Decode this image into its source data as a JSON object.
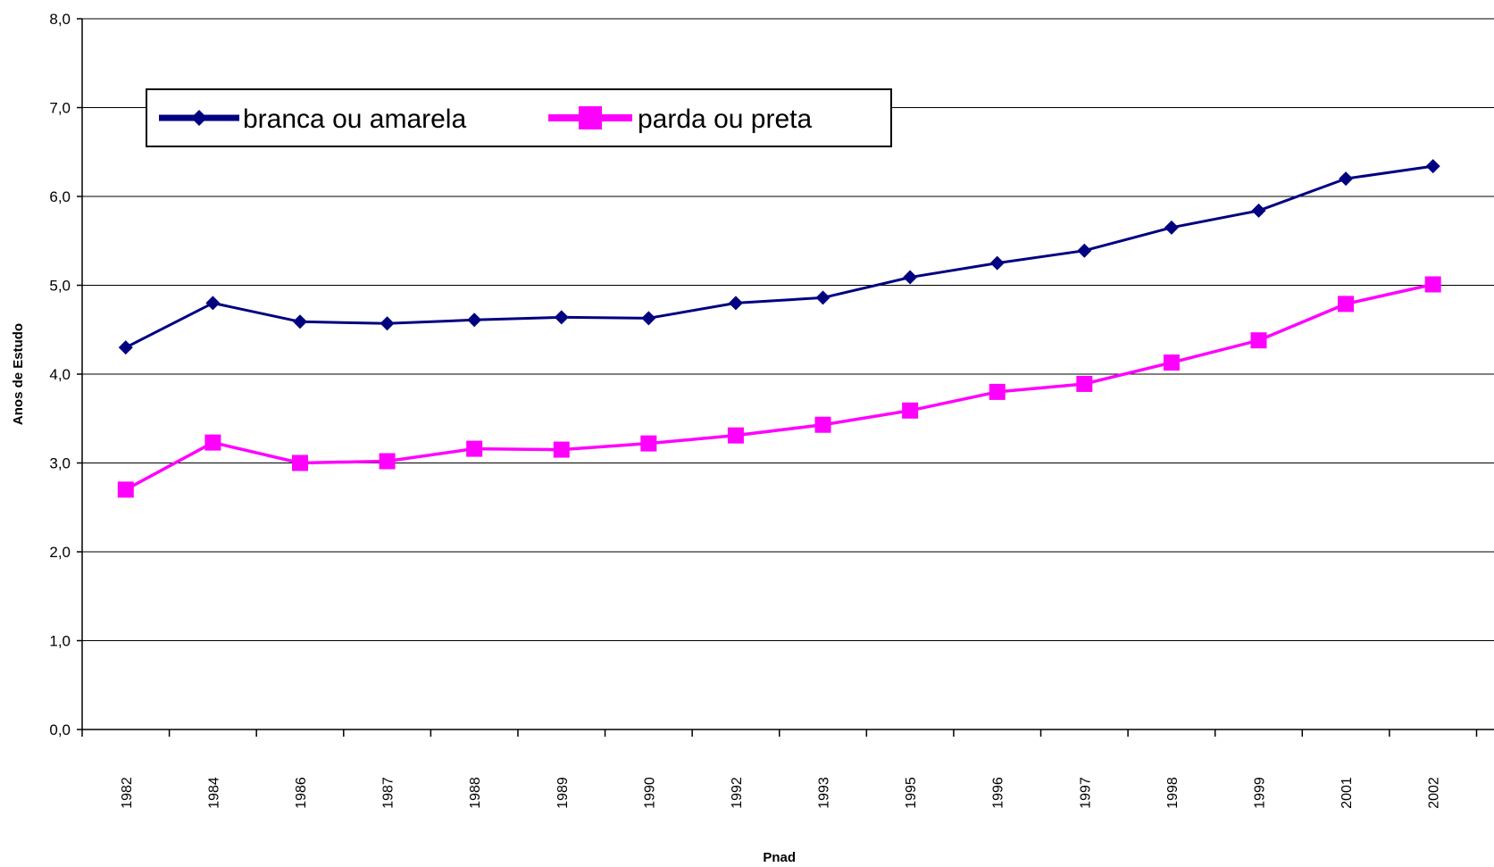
{
  "chart_data": {
    "type": "line",
    "xlabel": "Pnad",
    "ylabel": "Anos de Estudo",
    "ylim": [
      0,
      8
    ],
    "yticks": [
      "0,0",
      "1,0",
      "2,0",
      "3,0",
      "4,0",
      "5,0",
      "6,0",
      "7,0",
      "8,0"
    ],
    "categories": [
      "1982",
      "1984",
      "1986",
      "1987",
      "1988",
      "1989",
      "1990",
      "1992",
      "1993",
      "1995",
      "1996",
      "1997",
      "1998",
      "1999",
      "2001",
      "2002"
    ],
    "grid": "horizontal",
    "legend_position": "top-left",
    "series": [
      {
        "name": "branca ou amarela",
        "color": "#000080",
        "marker": "diamond",
        "values": [
          4.3,
          4.8,
          4.59,
          4.57,
          4.61,
          4.64,
          4.63,
          4.8,
          4.86,
          5.09,
          5.25,
          5.39,
          5.65,
          5.84,
          6.2,
          6.34
        ]
      },
      {
        "name": "parda ou preta",
        "color": "#FF00FF",
        "marker": "square",
        "values": [
          2.7,
          3.23,
          3.0,
          3.02,
          3.16,
          3.15,
          3.22,
          3.31,
          3.43,
          3.59,
          3.8,
          3.89,
          4.13,
          4.38,
          4.79,
          5.01
        ]
      }
    ]
  }
}
